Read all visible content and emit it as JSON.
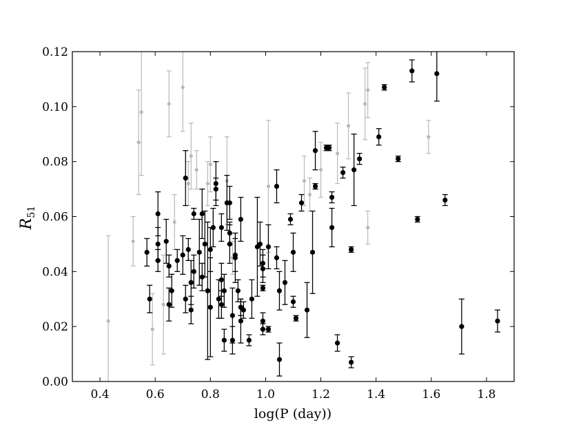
{
  "chart_data": {
    "type": "scatter",
    "title": "",
    "xlabel": "log(P (day))",
    "ylabel_main": "R",
    "ylabel_sub": "51",
    "xlim": [
      0.3,
      1.9
    ],
    "ylim": [
      0.0,
      0.12
    ],
    "xticks": [
      0.4,
      0.6,
      0.8,
      1.0,
      1.2,
      1.4,
      1.6,
      1.8
    ],
    "xtick_labels": [
      "0.4",
      "0.6",
      "0.8",
      "1.0",
      "1.2",
      "1.4",
      "1.6",
      "1.8"
    ],
    "yticks": [
      0.0,
      0.02,
      0.04,
      0.06,
      0.08,
      0.1,
      0.12
    ],
    "ytick_labels": [
      "0.00",
      "0.02",
      "0.04",
      "0.06",
      "0.08",
      "0.10",
      "0.12"
    ],
    "grid": false,
    "colors": {
      "primary": "#000000",
      "secondary": "#b8b8b8"
    },
    "series": [
      {
        "style": "primary",
        "points": [
          {
            "x": 0.57,
            "y": 0.047,
            "e": 0.005
          },
          {
            "x": 0.58,
            "y": 0.03,
            "e": 0.005
          },
          {
            "x": 0.61,
            "y": 0.061,
            "e": 0.008
          },
          {
            "x": 0.61,
            "y": 0.05,
            "e": 0.006
          },
          {
            "x": 0.61,
            "y": 0.044,
            "e": 0.004
          },
          {
            "x": 0.64,
            "y": 0.051,
            "e": 0.008
          },
          {
            "x": 0.65,
            "y": 0.028,
            "e": 0.006
          },
          {
            "x": 0.65,
            "y": 0.042,
            "e": 0.004
          },
          {
            "x": 0.66,
            "y": 0.033,
            "e": 0.006
          },
          {
            "x": 0.68,
            "y": 0.044,
            "e": 0.004
          },
          {
            "x": 0.7,
            "y": 0.046,
            "e": 0.007
          },
          {
            "x": 0.71,
            "y": 0.074,
            "e": 0.01
          },
          {
            "x": 0.71,
            "y": 0.03,
            "e": 0.005
          },
          {
            "x": 0.72,
            "y": 0.048,
            "e": 0.004
          },
          {
            "x": 0.73,
            "y": 0.036,
            "e": 0.008
          },
          {
            "x": 0.73,
            "y": 0.026,
            "e": 0.005
          },
          {
            "x": 0.74,
            "y": 0.04,
            "e": 0.006
          },
          {
            "x": 0.74,
            "y": 0.061,
            "e": 0.002
          },
          {
            "x": 0.76,
            "y": 0.047,
            "e": 0.012
          },
          {
            "x": 0.77,
            "y": 0.061,
            "e": 0.009
          },
          {
            "x": 0.77,
            "y": 0.038,
            "e": 0.005
          },
          {
            "x": 0.78,
            "y": 0.05,
            "e": 0.012
          },
          {
            "x": 0.79,
            "y": 0.033,
            "e": 0.025
          },
          {
            "x": 0.8,
            "y": 0.027,
            "e": 0.018
          },
          {
            "x": 0.8,
            "y": 0.048,
            "e": 0.008
          },
          {
            "x": 0.81,
            "y": 0.056,
            "e": 0.007
          },
          {
            "x": 0.82,
            "y": 0.072,
            "e": 0.008
          },
          {
            "x": 0.82,
            "y": 0.07,
            "e": 0.004
          },
          {
            "x": 0.83,
            "y": 0.03,
            "e": 0.007
          },
          {
            "x": 0.84,
            "y": 0.056,
            "e": 0.005
          },
          {
            "x": 0.84,
            "y": 0.037,
            "e": 0.006
          },
          {
            "x": 0.84,
            "y": 0.028,
            "e": 0.005
          },
          {
            "x": 0.85,
            "y": 0.033,
            "e": 0.006
          },
          {
            "x": 0.85,
            "y": 0.015,
            "e": 0.004
          },
          {
            "x": 0.86,
            "y": 0.065,
            "e": 0.01
          },
          {
            "x": 0.87,
            "y": 0.054,
            "e": 0.004
          },
          {
            "x": 0.87,
            "y": 0.065,
            "e": 0.006
          },
          {
            "x": 0.87,
            "y": 0.05,
            "e": 0.007
          },
          {
            "x": 0.88,
            "y": 0.024,
            "e": 0.01
          },
          {
            "x": 0.88,
            "y": 0.015,
            "e": 0.005
          },
          {
            "x": 0.89,
            "y": 0.046,
            "e": 0.006
          },
          {
            "x": 0.89,
            "y": 0.045,
            "e": 0.009
          },
          {
            "x": 0.9,
            "y": 0.033,
            "e": 0.004
          },
          {
            "x": 0.91,
            "y": 0.059,
            "e": 0.008
          },
          {
            "x": 0.91,
            "y": 0.022,
            "e": 0.008
          },
          {
            "x": 0.91,
            "y": 0.027,
            "e": 0.003
          },
          {
            "x": 0.92,
            "y": 0.026,
            "e": 0.003
          },
          {
            "x": 0.94,
            "y": 0.015,
            "e": 0.002
          },
          {
            "x": 0.95,
            "y": 0.03,
            "e": 0.007
          },
          {
            "x": 0.97,
            "y": 0.049,
            "e": 0.018
          },
          {
            "x": 0.98,
            "y": 0.05,
            "e": 0.008
          },
          {
            "x": 0.99,
            "y": 0.043,
            "e": 0.005
          },
          {
            "x": 0.99,
            "y": 0.041,
            "e": 0.005
          },
          {
            "x": 0.99,
            "y": 0.034,
            "e": 0.001
          },
          {
            "x": 0.99,
            "y": 0.022,
            "e": 0.003
          },
          {
            "x": 0.99,
            "y": 0.019,
            "e": 0.002
          },
          {
            "x": 1.01,
            "y": 0.049,
            "e": 0.008
          },
          {
            "x": 1.01,
            "y": 0.019,
            "e": 0.001
          },
          {
            "x": 1.04,
            "y": 0.071,
            "e": 0.006
          },
          {
            "x": 1.04,
            "y": 0.045,
            "e": 0.004
          },
          {
            "x": 1.05,
            "y": 0.033,
            "e": 0.007
          },
          {
            "x": 1.05,
            "y": 0.008,
            "e": 0.006
          },
          {
            "x": 1.07,
            "y": 0.036,
            "e": 0.008
          },
          {
            "x": 1.09,
            "y": 0.059,
            "e": 0.002
          },
          {
            "x": 1.1,
            "y": 0.029,
            "e": 0.002
          },
          {
            "x": 1.1,
            "y": 0.047,
            "e": 0.007
          },
          {
            "x": 1.11,
            "y": 0.023,
            "e": 0.001
          },
          {
            "x": 1.13,
            "y": 0.065,
            "e": 0.003
          },
          {
            "x": 1.15,
            "y": 0.026,
            "e": 0.01
          },
          {
            "x": 1.17,
            "y": 0.047,
            "e": 0.015
          },
          {
            "x": 1.18,
            "y": 0.084,
            "e": 0.007
          },
          {
            "x": 1.18,
            "y": 0.071,
            "e": 0.001
          },
          {
            "x": 1.22,
            "y": 0.085,
            "e": 0.001
          },
          {
            "x": 1.23,
            "y": 0.085,
            "e": 0.001
          },
          {
            "x": 1.24,
            "y": 0.067,
            "e": 0.002
          },
          {
            "x": 1.24,
            "y": 0.056,
            "e": 0.007
          },
          {
            "x": 1.26,
            "y": 0.014,
            "e": 0.003
          },
          {
            "x": 1.28,
            "y": 0.076,
            "e": 0.002
          },
          {
            "x": 1.31,
            "y": 0.048,
            "e": 0.001
          },
          {
            "x": 1.31,
            "y": 0.007,
            "e": 0.002
          },
          {
            "x": 1.32,
            "y": 0.077,
            "e": 0.013
          },
          {
            "x": 1.34,
            "y": 0.081,
            "e": 0.002
          },
          {
            "x": 1.41,
            "y": 0.089,
            "e": 0.003
          },
          {
            "x": 1.43,
            "y": 0.107,
            "e": 0.001
          },
          {
            "x": 1.48,
            "y": 0.081,
            "e": 0.001
          },
          {
            "x": 1.53,
            "y": 0.113,
            "e": 0.004
          },
          {
            "x": 1.55,
            "y": 0.059,
            "e": 0.001
          },
          {
            "x": 1.62,
            "y": 0.112,
            "e": 0.01
          },
          {
            "x": 1.65,
            "y": 0.066,
            "e": 0.002
          },
          {
            "x": 1.71,
            "y": 0.02,
            "e": 0.01
          },
          {
            "x": 1.84,
            "y": 0.022,
            "e": 0.004
          }
        ]
      },
      {
        "style": "secondary",
        "points": [
          {
            "x": 0.43,
            "y": 0.022,
            "e": 0.031
          },
          {
            "x": 0.52,
            "y": 0.051,
            "e": 0.009
          },
          {
            "x": 0.54,
            "y": 0.087,
            "e": 0.019
          },
          {
            "x": 0.55,
            "y": 0.098,
            "e": 0.023
          },
          {
            "x": 0.59,
            "y": 0.019,
            "e": 0.013
          },
          {
            "x": 0.63,
            "y": 0.028,
            "e": 0.018
          },
          {
            "x": 0.65,
            "y": 0.101,
            "e": 0.012
          },
          {
            "x": 0.67,
            "y": 0.058,
            "e": 0.01
          },
          {
            "x": 0.7,
            "y": 0.107,
            "e": 0.016
          },
          {
            "x": 0.72,
            "y": 0.072,
            "e": 0.008
          },
          {
            "x": 0.73,
            "y": 0.082,
            "e": 0.012
          },
          {
            "x": 0.75,
            "y": 0.077,
            "e": 0.007
          },
          {
            "x": 0.79,
            "y": 0.072,
            "e": 0.008
          },
          {
            "x": 0.8,
            "y": 0.079,
            "e": 0.01
          },
          {
            "x": 0.86,
            "y": 0.073,
            "e": 0.016
          },
          {
            "x": 0.88,
            "y": 0.045,
            "e": 0.006
          },
          {
            "x": 1.01,
            "y": 0.071,
            "e": 0.024
          },
          {
            "x": 1.14,
            "y": 0.073,
            "e": 0.009
          },
          {
            "x": 1.16,
            "y": 0.068,
            "e": 0.006
          },
          {
            "x": 1.2,
            "y": 0.077,
            "e": 0.01
          },
          {
            "x": 1.26,
            "y": 0.083,
            "e": 0.011
          },
          {
            "x": 1.3,
            "y": 0.093,
            "e": 0.012
          },
          {
            "x": 1.36,
            "y": 0.101,
            "e": 0.013
          },
          {
            "x": 1.37,
            "y": 0.106,
            "e": 0.01
          },
          {
            "x": 1.37,
            "y": 0.056,
            "e": 0.006
          },
          {
            "x": 1.59,
            "y": 0.089,
            "e": 0.006
          }
        ]
      }
    ]
  }
}
